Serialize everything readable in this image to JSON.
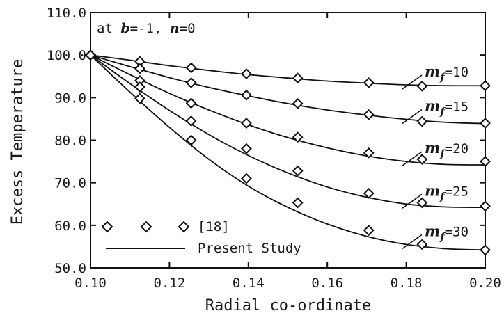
{
  "chart_data": {
    "type": "line",
    "xlabel": "Radial co-ordinate",
    "ylabel": "Excess Temperature",
    "xlim": [
      0.1,
      0.2
    ],
    "ylim": [
      50.0,
      110.0
    ],
    "xticks": [
      "0.10",
      "0.12",
      "0.14",
      "0.16",
      "0.18",
      "0.20"
    ],
    "yticks": [
      "50.0",
      "60.0",
      "70.0",
      "80.0",
      "90.0",
      "100.0",
      "110.0"
    ],
    "grid": false,
    "annotation": {
      "prefix": "at ",
      "b_sym": "b",
      "b_val": "=-1, ",
      "n_sym": "n",
      "n_val": "=0"
    },
    "legend": {
      "placement": "bottom-left",
      "markers_label": "[18]",
      "line_label": "Present Study"
    },
    "marker_x": [
      0.1,
      0.1125,
      0.1255,
      0.1395,
      0.1525,
      0.1705,
      0.184,
      0.2
    ],
    "series": [
      {
        "label_sym": "m",
        "label_sub": "f",
        "label_val": "=10",
        "marker_values": [
          100.0,
          98.5,
          97.0,
          95.6,
          94.6,
          93.5,
          92.7,
          92.8
        ],
        "line": [
          [
            0.1,
            100.0
          ],
          [
            0.11,
            98.8
          ],
          [
            0.12,
            97.5
          ],
          [
            0.13,
            96.4
          ],
          [
            0.14,
            95.4
          ],
          [
            0.15,
            94.6
          ],
          [
            0.16,
            93.9
          ],
          [
            0.17,
            93.4
          ],
          [
            0.18,
            93.0
          ],
          [
            0.19,
            92.8
          ],
          [
            0.2,
            92.8
          ]
        ]
      },
      {
        "label_sym": "m",
        "label_sub": "f",
        "label_val": "=15",
        "marker_values": [
          100.0,
          96.8,
          93.5,
          90.6,
          88.6,
          86.0,
          84.4,
          84.0
        ],
        "line": [
          [
            0.1,
            100.0
          ],
          [
            0.11,
            97.3
          ],
          [
            0.12,
            94.7
          ],
          [
            0.13,
            92.4
          ],
          [
            0.14,
            90.4
          ],
          [
            0.15,
            88.6
          ],
          [
            0.16,
            87.1
          ],
          [
            0.17,
            85.9
          ],
          [
            0.18,
            84.9
          ],
          [
            0.19,
            84.2
          ],
          [
            0.2,
            83.9
          ]
        ]
      },
      {
        "label_sym": "m",
        "label_sub": "f",
        "label_val": "=20",
        "marker_values": [
          100.0,
          94.0,
          88.7,
          84.0,
          80.7,
          77.0,
          75.5,
          75.0
        ],
        "line": [
          [
            0.1,
            100.0
          ],
          [
            0.11,
            95.4
          ],
          [
            0.12,
            91.0
          ],
          [
            0.13,
            87.1
          ],
          [
            0.14,
            83.6
          ],
          [
            0.15,
            80.6
          ],
          [
            0.16,
            78.2
          ],
          [
            0.17,
            76.3
          ],
          [
            0.18,
            75.0
          ],
          [
            0.19,
            74.3
          ],
          [
            0.2,
            74.2
          ]
        ]
      },
      {
        "label_sym": "m",
        "label_sub": "f",
        "label_val": "=25",
        "marker_values": [
          100.0,
          92.5,
          84.5,
          78.0,
          72.8,
          67.5,
          65.3,
          64.5
        ],
        "line": [
          [
            0.1,
            100.0
          ],
          [
            0.11,
            93.3
          ],
          [
            0.12,
            87.0
          ],
          [
            0.13,
            81.3
          ],
          [
            0.14,
            76.4
          ],
          [
            0.15,
            72.3
          ],
          [
            0.16,
            69.0
          ],
          [
            0.17,
            66.6
          ],
          [
            0.18,
            65.0
          ],
          [
            0.19,
            64.3
          ],
          [
            0.2,
            64.2
          ]
        ]
      },
      {
        "label_sym": "m",
        "label_sub": "f",
        "label_val": "=30",
        "marker_values": [
          100.0,
          89.8,
          80.0,
          71.0,
          65.3,
          58.8,
          55.5,
          54.2
        ],
        "line": [
          [
            0.1,
            100.0
          ],
          [
            0.11,
            91.3
          ],
          [
            0.12,
            83.0
          ],
          [
            0.13,
            75.5
          ],
          [
            0.14,
            69.2
          ],
          [
            0.15,
            64.2
          ],
          [
            0.16,
            60.3
          ],
          [
            0.17,
            57.4
          ],
          [
            0.18,
            55.5
          ],
          [
            0.19,
            54.5
          ],
          [
            0.2,
            54.2
          ]
        ]
      }
    ]
  }
}
